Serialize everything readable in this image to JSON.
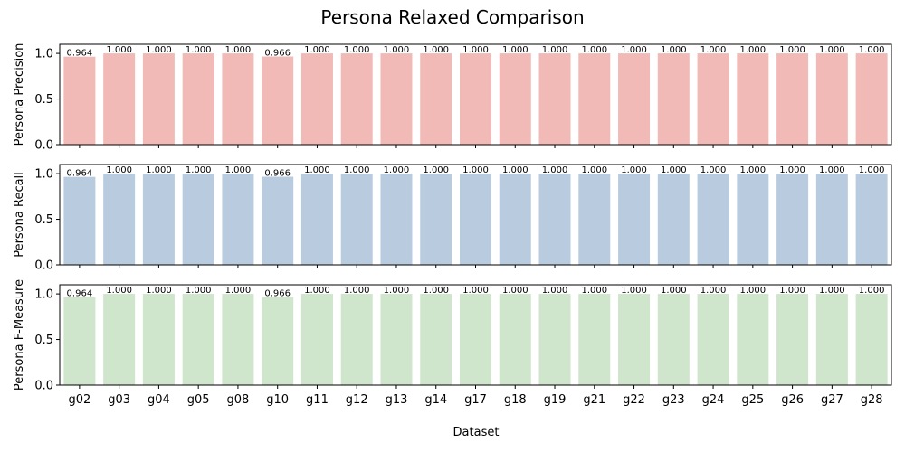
{
  "figure": {
    "title": "Persona Relaxed Comparison",
    "xlabel": "Dataset"
  },
  "chart_data": [
    {
      "type": "bar",
      "ylabel": "Persona Precision",
      "color": "#f1bab7",
      "categories": [
        "g02",
        "g03",
        "g04",
        "g05",
        "g08",
        "g10",
        "g11",
        "g12",
        "g13",
        "g14",
        "g17",
        "g18",
        "g19",
        "g21",
        "g22",
        "g23",
        "g24",
        "g25",
        "g26",
        "g27",
        "g28"
      ],
      "values": [
        0.964,
        1.0,
        1.0,
        1.0,
        1.0,
        0.966,
        1.0,
        1.0,
        1.0,
        1.0,
        1.0,
        1.0,
        1.0,
        1.0,
        1.0,
        1.0,
        1.0,
        1.0,
        1.0,
        1.0,
        1.0
      ],
      "data_labels": [
        "0.964",
        "1.000",
        "1.000",
        "1.000",
        "1.000",
        "0.966",
        "1.000",
        "1.000",
        "1.000",
        "1.000",
        "1.000",
        "1.000",
        "1.000",
        "1.000",
        "1.000",
        "1.000",
        "1.000",
        "1.000",
        "1.000",
        "1.000",
        "1.000"
      ],
      "ylim": [
        0,
        1.1
      ],
      "yticks": [
        "0.0",
        "0.5",
        "1.0"
      ],
      "grid": false,
      "show_xticklabels": false
    },
    {
      "type": "bar",
      "ylabel": "Persona Recall",
      "color": "#b9ccdf",
      "categories": [
        "g02",
        "g03",
        "g04",
        "g05",
        "g08",
        "g10",
        "g11",
        "g12",
        "g13",
        "g14",
        "g17",
        "g18",
        "g19",
        "g21",
        "g22",
        "g23",
        "g24",
        "g25",
        "g26",
        "g27",
        "g28"
      ],
      "values": [
        0.964,
        1.0,
        1.0,
        1.0,
        1.0,
        0.966,
        1.0,
        1.0,
        1.0,
        1.0,
        1.0,
        1.0,
        1.0,
        1.0,
        1.0,
        1.0,
        1.0,
        1.0,
        1.0,
        1.0,
        1.0
      ],
      "data_labels": [
        "0.964",
        "1.000",
        "1.000",
        "1.000",
        "1.000",
        "0.966",
        "1.000",
        "1.000",
        "1.000",
        "1.000",
        "1.000",
        "1.000",
        "1.000",
        "1.000",
        "1.000",
        "1.000",
        "1.000",
        "1.000",
        "1.000",
        "1.000",
        "1.000"
      ],
      "ylim": [
        0,
        1.1
      ],
      "yticks": [
        "0.0",
        "0.5",
        "1.0"
      ],
      "grid": false,
      "show_xticklabels": false
    },
    {
      "type": "bar",
      "ylabel": "Persona F-Measure",
      "color": "#cfe5cc",
      "categories": [
        "g02",
        "g03",
        "g04",
        "g05",
        "g08",
        "g10",
        "g11",
        "g12",
        "g13",
        "g14",
        "g17",
        "g18",
        "g19",
        "g21",
        "g22",
        "g23",
        "g24",
        "g25",
        "g26",
        "g27",
        "g28"
      ],
      "values": [
        0.964,
        1.0,
        1.0,
        1.0,
        1.0,
        0.966,
        1.0,
        1.0,
        1.0,
        1.0,
        1.0,
        1.0,
        1.0,
        1.0,
        1.0,
        1.0,
        1.0,
        1.0,
        1.0,
        1.0,
        1.0
      ],
      "data_labels": [
        "0.964",
        "1.000",
        "1.000",
        "1.000",
        "1.000",
        "0.966",
        "1.000",
        "1.000",
        "1.000",
        "1.000",
        "1.000",
        "1.000",
        "1.000",
        "1.000",
        "1.000",
        "1.000",
        "1.000",
        "1.000",
        "1.000",
        "1.000",
        "1.000"
      ],
      "ylim": [
        0,
        1.1
      ],
      "yticks": [
        "0.0",
        "0.5",
        "1.0"
      ],
      "grid": false,
      "show_xticklabels": true
    }
  ]
}
